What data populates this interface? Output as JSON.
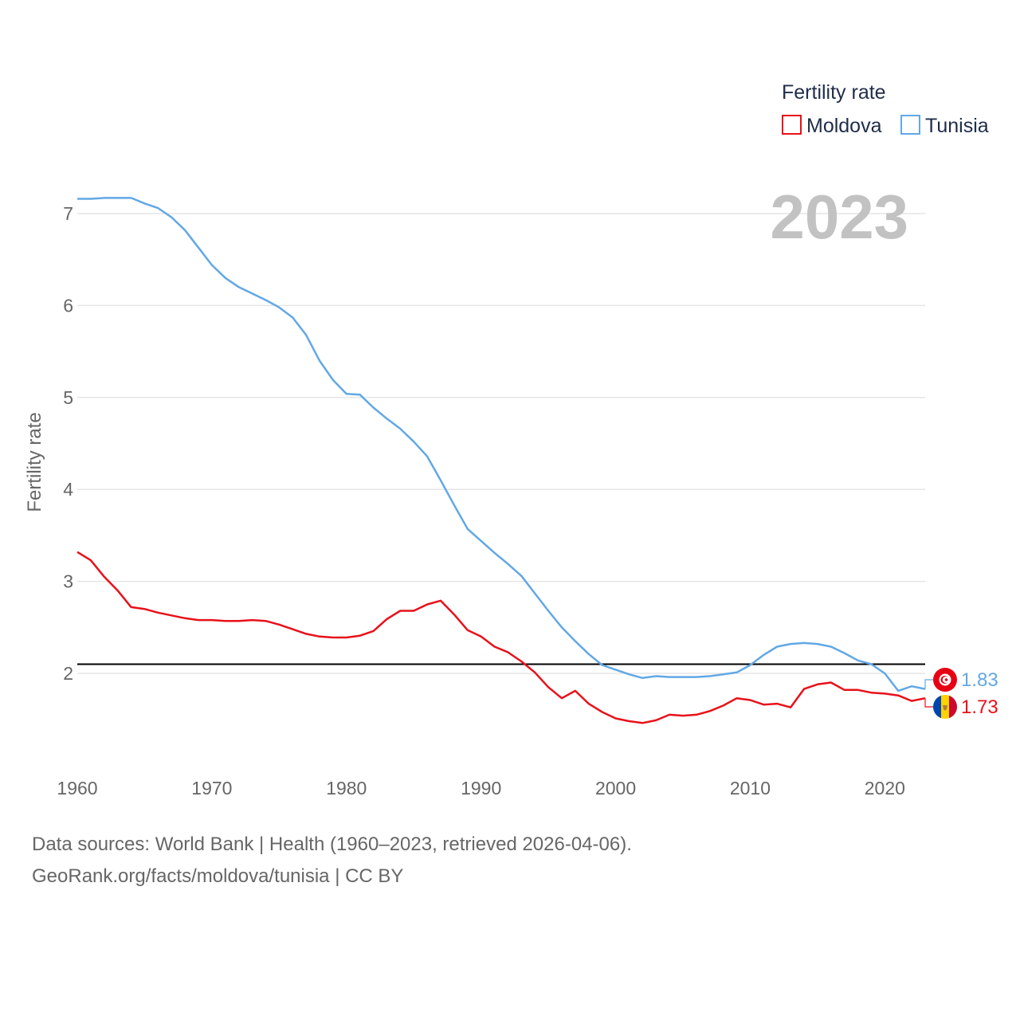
{
  "chart_data": {
    "type": "line",
    "title": "Fertility rate",
    "ylabel": "Fertility rate",
    "xlabel": "",
    "year_label": "2023",
    "xlim": [
      1960,
      2023
    ],
    "ylim": [
      1.0,
      7.5
    ],
    "x_ticks": [
      1960,
      1970,
      1980,
      1990,
      2000,
      2010,
      2020
    ],
    "y_ticks": [
      2,
      3,
      4,
      5,
      6,
      7
    ],
    "reference_line": {
      "value": 2.1,
      "color": "#000000"
    },
    "legend": {
      "title": "Fertility rate",
      "position": "top-right"
    },
    "x": [
      1960,
      1961,
      1962,
      1963,
      1964,
      1965,
      1966,
      1967,
      1968,
      1969,
      1970,
      1971,
      1972,
      1973,
      1974,
      1975,
      1976,
      1977,
      1978,
      1979,
      1980,
      1981,
      1982,
      1983,
      1984,
      1985,
      1986,
      1987,
      1988,
      1989,
      1990,
      1991,
      1992,
      1993,
      1994,
      1995,
      1996,
      1997,
      1998,
      1999,
      2000,
      2001,
      2002,
      2003,
      2004,
      2005,
      2006,
      2007,
      2008,
      2009,
      2010,
      2011,
      2012,
      2013,
      2014,
      2015,
      2016,
      2017,
      2018,
      2019,
      2020,
      2021,
      2022,
      2023
    ],
    "series": [
      {
        "name": "Moldova",
        "color": "#e8111a",
        "end_value_label": "1.73",
        "values": [
          3.32,
          3.23,
          3.05,
          2.9,
          2.72,
          2.7,
          2.66,
          2.63,
          2.6,
          2.58,
          2.58,
          2.57,
          2.57,
          2.58,
          2.57,
          2.53,
          2.48,
          2.43,
          2.4,
          2.39,
          2.39,
          2.41,
          2.46,
          2.59,
          2.68,
          2.68,
          2.75,
          2.79,
          2.64,
          2.47,
          2.4,
          2.29,
          2.23,
          2.13,
          2.01,
          1.85,
          1.73,
          1.81,
          1.67,
          1.58,
          1.51,
          1.48,
          1.46,
          1.49,
          1.55,
          1.54,
          1.55,
          1.59,
          1.65,
          1.73,
          1.71,
          1.66,
          1.67,
          1.63,
          1.83,
          1.88,
          1.9,
          1.82,
          1.82,
          1.79,
          1.78,
          1.76,
          1.7,
          1.73
        ]
      },
      {
        "name": "Tunisia",
        "color": "#62a8e5",
        "end_value_label": "1.83",
        "values": [
          7.16,
          7.16,
          7.17,
          7.17,
          7.17,
          7.11,
          7.06,
          6.96,
          6.82,
          6.63,
          6.44,
          6.3,
          6.2,
          6.13,
          6.06,
          5.98,
          5.87,
          5.68,
          5.4,
          5.19,
          5.04,
          5.03,
          4.89,
          4.77,
          4.66,
          4.52,
          4.36,
          4.1,
          3.83,
          3.57,
          3.44,
          3.31,
          3.19,
          3.06,
          2.87,
          2.68,
          2.5,
          2.35,
          2.21,
          2.09,
          2.04,
          1.99,
          1.95,
          1.97,
          1.96,
          1.96,
          1.96,
          1.97,
          1.99,
          2.01,
          2.09,
          2.2,
          2.29,
          2.32,
          2.33,
          2.32,
          2.29,
          2.22,
          2.14,
          2.1,
          2.0,
          1.81,
          1.86,
          1.83
        ]
      }
    ]
  },
  "legend": {
    "title": "Fertility rate",
    "items": [
      "Moldova",
      "Tunisia"
    ]
  },
  "footer": {
    "line1": "Data sources: World Bank | Health (1960–2023, retrieved 2026-04-06).",
    "line2": "GeoRank.org/facts/moldova/tunisia | CC BY"
  }
}
